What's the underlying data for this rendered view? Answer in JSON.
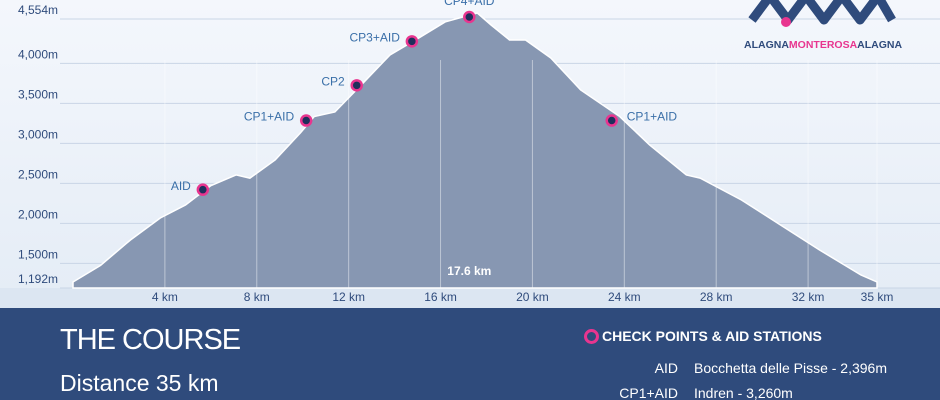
{
  "chart_data": {
    "type": "area",
    "color": "#8797b2",
    "x": [
      0,
      1.2,
      2.5,
      3.8,
      4.9,
      6.0,
      7.1,
      7.7,
      8.8,
      9.9,
      10.5,
      11.4,
      12.7,
      13.8,
      15.1,
      16.2,
      17.6,
      18.2,
      19.0,
      19.7,
      20.8,
      22.1,
      23.8,
      25.1,
      26.7,
      27.3,
      29.1,
      30.8,
      32.5,
      34.3,
      35
    ],
    "values": [
      1192,
      1400,
      1717,
      1992,
      2155,
      2396,
      2530,
      2490,
      2717,
      3055,
      3260,
      3317,
      3700,
      4030,
      4250,
      4442,
      4554,
      4404,
      4217,
      4217,
      3992,
      3592,
      3260,
      2905,
      2530,
      2490,
      2217,
      1905,
      1592,
      1280,
      1192
    ],
    "xlim": [
      0,
      35
    ],
    "ylim": [
      1192,
      4554
    ],
    "xticks": [
      {
        "value": 4,
        "label": "4 km"
      },
      {
        "value": 8,
        "label": "8 km"
      },
      {
        "value": 12,
        "label": "12 km"
      },
      {
        "value": 16,
        "label": "16 km"
      },
      {
        "value": 20,
        "label": "20 km"
      },
      {
        "value": 24,
        "label": "24 km"
      },
      {
        "value": 28,
        "label": "28 km"
      },
      {
        "value": 32,
        "label": "32 km"
      },
      {
        "value": 35,
        "label": "35 km"
      }
    ],
    "yticks": [
      {
        "value": 1192,
        "label": "1,192m"
      },
      {
        "value": 1500,
        "label": "1,500m"
      },
      {
        "value": 2000,
        "label": "2,000m"
      },
      {
        "value": 2500,
        "label": "2,500m"
      },
      {
        "value": 3000,
        "label": "3,000m"
      },
      {
        "value": 3500,
        "label": "3,500m"
      },
      {
        "value": 4000,
        "label": "4,000m"
      },
      {
        "value": 4554,
        "label": "4,554m"
      }
    ],
    "grid": true,
    "annotations": [
      {
        "label": "AID",
        "x": 6.0,
        "value": 2396
      },
      {
        "label": "CP1+AID",
        "x": 10.5,
        "value": 3260
      },
      {
        "label": "CP2",
        "x": 12.7,
        "value": 3700
      },
      {
        "label": "CP3+AID",
        "x": 15.1,
        "value": 4250
      },
      {
        "label": "CP4+AID",
        "x": 17.6,
        "value": 4554
      },
      {
        "label": "CP1+AID",
        "x": 23.8,
        "value": 3260
      }
    ],
    "peak_label": {
      "value": 17.6,
      "label": "17.6 km"
    }
  },
  "logo": [
    "ALAGNA",
    "MONTEROSA",
    "ALAGNA"
  ],
  "panel": {
    "title": "THE COURSE",
    "distance": "Distance 35 km",
    "legend_title": "CHECK POINTS & AID STATIONS",
    "rows": [
      [
        "AID",
        "Bocchetta delle Pisse  -  2,396m"
      ],
      [
        "CP1+AID",
        "Indren  -  3,260m"
      ]
    ]
  }
}
